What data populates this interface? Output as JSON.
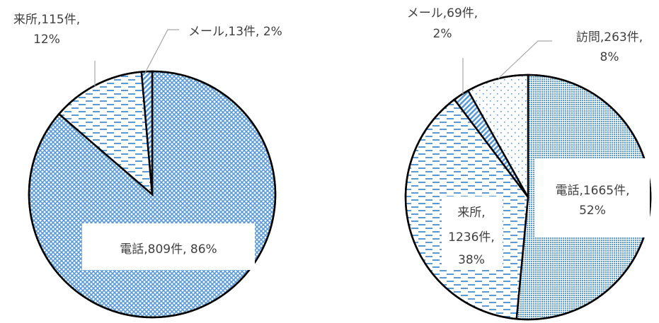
{
  "chart_data": [
    {
      "type": "pie",
      "slices": [
        {
          "label": "電話",
          "value": 809,
          "unit": "件",
          "percent": "86%",
          "pattern": "crosshatch"
        },
        {
          "label": "来所",
          "value": 115,
          "unit": "件",
          "percent": "12%",
          "pattern": "dashes"
        },
        {
          "label": "メール",
          "value": 13,
          "unit": "件",
          "percent": "2%",
          "pattern": "diagonal"
        }
      ],
      "slice_order_clockwise_from_top": [
        0,
        1,
        2
      ],
      "labels_text": [
        [
          "電話,809件, 86%"
        ],
        [
          "来所,115件,",
          "12%"
        ],
        [
          "メール,13件, 2%"
        ]
      ]
    },
    {
      "type": "pie",
      "slices": [
        {
          "label": "電話",
          "value": 1665,
          "unit": "件",
          "percent": "52%",
          "pattern": "dots-dense"
        },
        {
          "label": "来所",
          "value": 1236,
          "unit": "件",
          "percent": "38%",
          "pattern": "dashes"
        },
        {
          "label": "メール",
          "value": 69,
          "unit": "件",
          "percent": "2%",
          "pattern": "diagonal"
        },
        {
          "label": "訪問",
          "value": 263,
          "unit": "件",
          "percent": "8%",
          "pattern": "dots-sparse"
        }
      ],
      "labels_text": [
        [
          "電話,1665件,",
          "52%"
        ],
        [
          "来所,",
          "1236件,",
          "38%"
        ],
        [
          "メール,69件,",
          "2%"
        ],
        [
          "訪問,263件,",
          "8%"
        ]
      ]
    }
  ],
  "colors": {
    "pattern": "#5b9bd5",
    "outline": "#000000",
    "label_text": "#404040",
    "leader": "#a6a6a6"
  }
}
